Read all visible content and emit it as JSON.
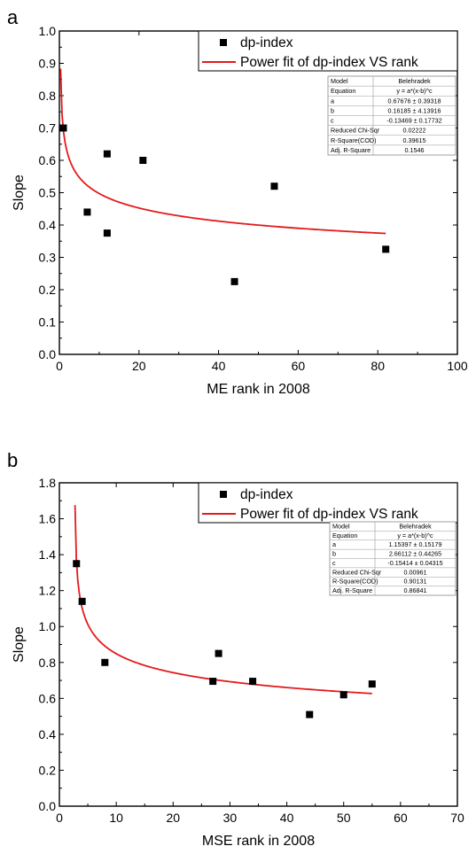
{
  "chart_data": [
    {
      "type": "scatter",
      "panel_label": "a",
      "title": "",
      "xlabel": "ME rank in 2008",
      "ylabel": "Slope",
      "xlim": [
        0,
        100
      ],
      "ylim": [
        0.0,
        1.0
      ],
      "xticks": [
        "0",
        "20",
        "40",
        "60",
        "80",
        "100"
      ],
      "yticks": [
        "0.0",
        "0.1",
        "0.2",
        "0.3",
        "0.4",
        "0.5",
        "0.6",
        "0.7",
        "0.8",
        "0.9",
        "1.0"
      ],
      "xtick_values": [
        0,
        20,
        40,
        60,
        80,
        100
      ],
      "ytick_values": [
        0.0,
        0.1,
        0.2,
        0.3,
        0.4,
        0.5,
        0.6,
        0.7,
        0.8,
        0.9,
        1.0
      ],
      "legend_position": "top-right",
      "legend": [
        "dp-index",
        "Power fit of dp-index VS rank"
      ],
      "series": [
        {
          "name": "dp-index",
          "color": "#000000",
          "x": [
            1,
            7,
            12,
            12,
            21,
            44,
            54,
            82
          ],
          "y": [
            0.7,
            0.44,
            0.62,
            0.375,
            0.6,
            0.225,
            0.52,
            0.325
          ]
        }
      ],
      "fit": {
        "color": "#e41a1c",
        "a": 0.67676,
        "b": 0.16185,
        "c": -0.13469,
        "x_range": [
          0.3,
          82
        ]
      },
      "fit_table": [
        [
          "Model",
          "Belehradek"
        ],
        [
          "Equation",
          "y = a*(x-b)^c"
        ],
        [
          "a",
          "0.67676 ± 0.39318"
        ],
        [
          "b",
          "0.16185 ± 4.13916"
        ],
        [
          "c",
          "-0.13469 ± 0.17732"
        ],
        [
          "Reduced Chi-Sqr",
          "0.02222"
        ],
        [
          "R-Square(COD)",
          "0.39615"
        ],
        [
          "Adj. R-Square",
          "0.1546"
        ]
      ]
    },
    {
      "type": "scatter",
      "panel_label": "b",
      "title": "",
      "xlabel": "MSE rank in 2008",
      "ylabel": "Slope",
      "xlim": [
        0,
        70
      ],
      "ylim": [
        0.0,
        1.8
      ],
      "xticks": [
        "0",
        "10",
        "20",
        "30",
        "40",
        "50",
        "60",
        "70"
      ],
      "yticks": [
        "0.0",
        "0.2",
        "0.4",
        "0.6",
        "0.8",
        "1.0",
        "1.2",
        "1.4",
        "1.6",
        "1.8"
      ],
      "xtick_values": [
        0,
        10,
        20,
        30,
        40,
        50,
        60,
        70
      ],
      "ytick_values": [
        0.0,
        0.2,
        0.4,
        0.6,
        0.8,
        1.0,
        1.2,
        1.4,
        1.6,
        1.8
      ],
      "legend_position": "top-right",
      "legend": [
        "dp-index",
        "Power fit of dp-index VS rank"
      ],
      "series": [
        {
          "name": "dp-index",
          "color": "#000000",
          "x": [
            3,
            4,
            8,
            27,
            28,
            34,
            44,
            50,
            55
          ],
          "y": [
            1.35,
            1.14,
            0.8,
            0.695,
            0.85,
            0.695,
            0.51,
            0.62,
            0.68
          ]
        }
      ],
      "fit": {
        "color": "#e41a1c",
        "a": 1.15397,
        "b": 2.66112,
        "c": -0.15414,
        "x_range": [
          2.75,
          55
        ]
      },
      "fit_table": [
        [
          "Model",
          "Belehradek"
        ],
        [
          "Equation",
          "y = a*(x-b)^c"
        ],
        [
          "a",
          "1.15397 ± 0.15179"
        ],
        [
          "b",
          "2.66112 ± 0.44265"
        ],
        [
          "c",
          "-0.15414 ± 0.04315"
        ],
        [
          "Reduced Chi-Sqr",
          "0.00961"
        ],
        [
          "R-Square(COD)",
          "0.90131"
        ],
        [
          "Adj. R-Square",
          "0.86841"
        ]
      ]
    }
  ]
}
